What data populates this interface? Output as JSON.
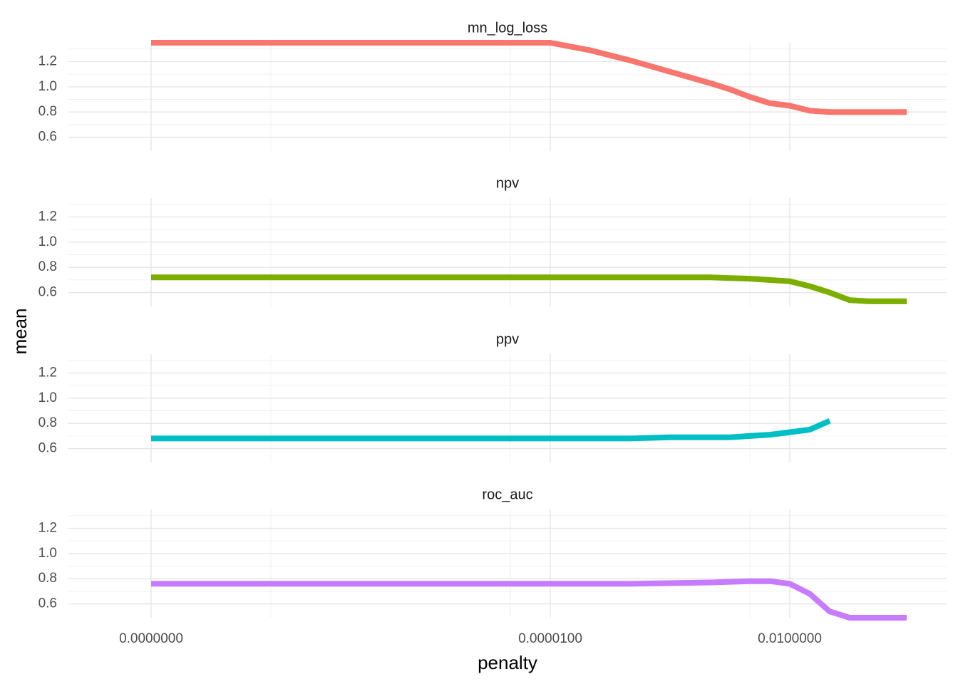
{
  "chart_data": {
    "type": "line",
    "layout": "facets",
    "x_scale": "log10",
    "xlabel": "penalty",
    "ylabel": "mean",
    "x_ticks": [
      1e-10,
      1e-05,
      0.01
    ],
    "x_tick_labels": [
      "0.0000000",
      "0.0000100",
      "0.0100000"
    ],
    "xlim": [
      1e-10,
      1
    ],
    "y_ticks": [
      0.6,
      0.8,
      1.0,
      1.2
    ],
    "y_tick_labels": [
      "0.6",
      "0.8",
      "1.0",
      "1.2"
    ],
    "ylim": [
      0.49,
      1.35
    ],
    "grid": true,
    "legend": "none",
    "panels": [
      {
        "title": "mn_log_loss",
        "color": "#F8766D",
        "x": [
          1e-10,
          1e-09,
          1e-08,
          1e-07,
          1e-06,
          1e-05,
          3.16e-05,
          0.0001,
          0.000316,
          0.001,
          0.00178,
          0.00316,
          0.00562,
          0.01,
          0.0178,
          0.0316,
          0.1,
          1
        ],
        "y": [
          1.35,
          1.35,
          1.35,
          1.35,
          1.35,
          1.35,
          1.29,
          1.21,
          1.12,
          1.03,
          0.98,
          0.92,
          0.87,
          0.85,
          0.81,
          0.8,
          0.8,
          0.8
        ]
      },
      {
        "title": "npv",
        "color": "#7CAE00",
        "x": [
          1e-10,
          1e-08,
          1e-06,
          0.0001,
          0.001,
          0.00316,
          0.01,
          0.0178,
          0.0316,
          0.0562,
          0.1,
          1
        ],
        "y": [
          0.72,
          0.72,
          0.72,
          0.72,
          0.72,
          0.71,
          0.69,
          0.65,
          0.6,
          0.54,
          0.53,
          0.53
        ]
      },
      {
        "title": "ppv",
        "color": "#00BFC4",
        "x": [
          1e-10,
          1e-08,
          1e-06,
          0.0001,
          0.000316,
          0.001,
          0.00178,
          0.00316,
          0.00562,
          0.01,
          0.0178,
          0.0316
        ],
        "y": [
          0.68,
          0.68,
          0.68,
          0.68,
          0.69,
          0.69,
          0.69,
          0.7,
          0.71,
          0.73,
          0.75,
          0.82
        ]
      },
      {
        "title": "roc_auc",
        "color": "#C77CFF",
        "x": [
          1e-10,
          1e-08,
          1e-06,
          0.0001,
          0.001,
          0.00316,
          0.00562,
          0.01,
          0.0178,
          0.0316,
          0.0562,
          1
        ],
        "y": [
          0.76,
          0.76,
          0.76,
          0.76,
          0.77,
          0.78,
          0.78,
          0.76,
          0.68,
          0.54,
          0.49,
          0.49
        ]
      }
    ]
  }
}
